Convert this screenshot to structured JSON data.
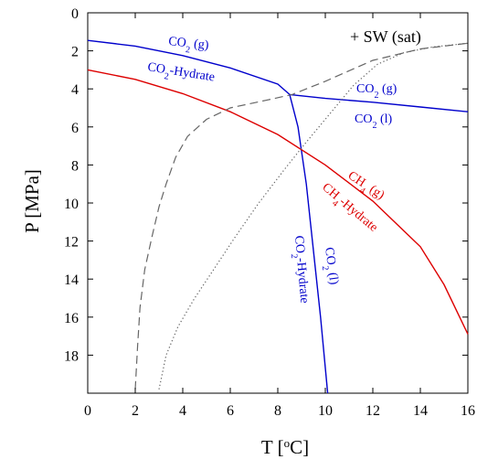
{
  "chart_data": {
    "type": "line",
    "xlabel": "T [°C]",
    "xlabel_base": "T [",
    "xlabel_sup": "o",
    "xlabel_end": "C]",
    "ylabel": "P [MPa]",
    "xlim": [
      0,
      16
    ],
    "ylim": [
      20,
      0
    ],
    "y_inverted": true,
    "xticks": [
      0,
      2,
      4,
      6,
      8,
      10,
      12,
      14,
      16
    ],
    "yticks": [
      0,
      2,
      4,
      6,
      8,
      10,
      12,
      14,
      16,
      18
    ],
    "grid": false,
    "colors": {
      "co2": "#0000cc",
      "ch4": "#dd0000",
      "sw": "#666666"
    },
    "series": [
      {
        "key": "co2_boundary",
        "color": "#0000cc",
        "style": "solid",
        "x": [
          0,
          2,
          4,
          6,
          8,
          8.5
        ],
        "y": [
          1.45,
          1.75,
          2.25,
          2.9,
          3.75,
          4.3
        ]
      },
      {
        "key": "co2_gl",
        "color": "#0000cc",
        "style": "solid",
        "x": [
          8.5,
          10,
          12,
          14,
          16
        ],
        "y": [
          4.3,
          4.5,
          4.7,
          4.95,
          5.2
        ]
      },
      {
        "key": "co2_hydrate_liquid",
        "color": "#0000cc",
        "style": "solid",
        "x": [
          8.5,
          8.85,
          9.2,
          9.5,
          9.8,
          10.1
        ],
        "y": [
          4.3,
          6.0,
          9.0,
          12.5,
          16.0,
          20.0
        ]
      },
      {
        "key": "ch4_boundary",
        "color": "#dd0000",
        "style": "solid",
        "x": [
          0,
          2,
          4,
          6,
          8,
          10,
          12,
          14,
          15,
          16
        ],
        "y": [
          3.0,
          3.5,
          4.25,
          5.2,
          6.4,
          8.0,
          9.9,
          12.3,
          14.3,
          16.9
        ]
      },
      {
        "key": "sw_dashed",
        "color": "#666666",
        "style": "dashed",
        "x": [
          2,
          2.1,
          2.2,
          2.4,
          2.7,
          3.0,
          3.3,
          3.7,
          4.2,
          5.0,
          6.0,
          7.5,
          8.6,
          10,
          12,
          14,
          16
        ],
        "y": [
          19.8,
          17.5,
          15.5,
          13.5,
          11.8,
          10.2,
          9.0,
          7.6,
          6.5,
          5.6,
          5.0,
          4.6,
          4.3,
          3.6,
          2.5,
          1.9,
          1.6
        ]
      },
      {
        "key": "sw_dotted",
        "color": "#666666",
        "style": "dotted",
        "x": [
          3,
          3.3,
          3.8,
          4.5,
          5.3,
          6.2,
          7.2,
          8.3,
          9.2,
          10.2,
          11.2,
          12.2,
          13.3,
          14.5,
          16
        ],
        "y": [
          19.8,
          18.0,
          16.5,
          15.0,
          13.5,
          11.8,
          10.0,
          8.2,
          6.8,
          5.3,
          3.8,
          2.7,
          2.1,
          1.8,
          1.6
        ]
      }
    ],
    "annotations": {
      "co2_g_upper": {
        "base": "CO",
        "sub": "2",
        "rest": " (g)"
      },
      "co2_hydrate_upper": {
        "base": "CO",
        "sub": "2",
        "rest": "-Hydrate"
      },
      "sw_sat": "+ SW (sat)",
      "co2_g_right": {
        "base": "CO",
        "sub": "2",
        "rest": " (g)"
      },
      "co2_l_right": {
        "base": "CO",
        "sub": "2",
        "rest": " (l)"
      },
      "ch4_g": {
        "base": "CH",
        "sub": "4",
        "rest": " (g)"
      },
      "ch4_hydrate": {
        "base": "CH",
        "sub": "4",
        "rest": "-Hydrate"
      },
      "co2_hydrate_vertical": {
        "base": "CO",
        "sub": "2",
        "rest": "-Hydrate"
      },
      "co2_l_vertical": {
        "base": "CO",
        "sub": "2",
        "rest": " (l)"
      }
    }
  }
}
